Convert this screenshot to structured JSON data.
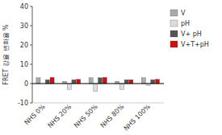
{
  "chart_data": {
    "type": "bar",
    "ylabel": "FRET 강율 변화율 %",
    "categories": [
      "NHS 0%",
      "NHS 20%",
      "NHS 50%",
      "NHS 80%",
      "NHS 100%"
    ],
    "series": [
      {
        "name": "V",
        "color": "#aaaaaa",
        "values": [
          3.0,
          1.2,
          3.0,
          1.2,
          3.0
        ]
      },
      {
        "name": "pH",
        "color": "#dddddd",
        "values": [
          0.0,
          -3.0,
          -4.0,
          -3.0,
          -1.0
        ]
      },
      {
        "name": "V+ pH",
        "color": "#555555",
        "values": [
          2.0,
          2.0,
          3.0,
          2.0,
          2.0
        ]
      },
      {
        "name": "V+T+pH",
        "color": "#cc1111",
        "values": [
          3.2,
          2.2,
          3.2,
          2.0,
          2.2
        ]
      }
    ],
    "ylim": [
      -10,
      40
    ],
    "yticks": [
      -10,
      0,
      10,
      20,
      30,
      40
    ],
    "grid": false,
    "legend": "right"
  }
}
